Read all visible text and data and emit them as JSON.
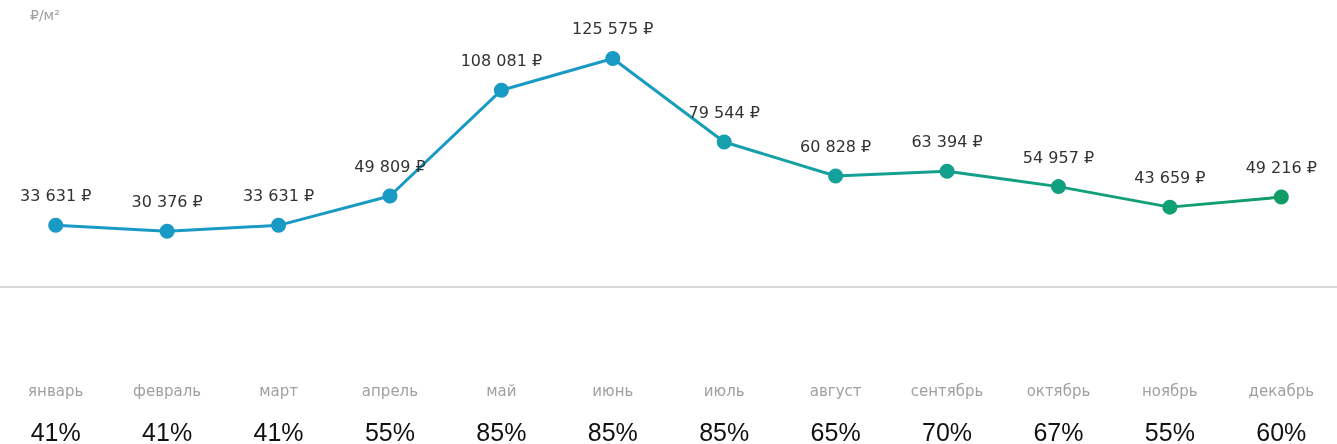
{
  "chart_data": {
    "type": "line",
    "ylabel": "₽/м²",
    "categories": [
      "январь",
      "февраль",
      "март",
      "апрель",
      "май",
      "июнь",
      "июль",
      "август",
      "сентябрь",
      "октябрь",
      "ноябрь",
      "декабрь"
    ],
    "values": [
      33631,
      30376,
      33631,
      49809,
      108081,
      125575,
      79544,
      60828,
      63394,
      54957,
      43659,
      49216
    ],
    "value_labels": [
      "33 631 ₽",
      "30 376 ₽",
      "33 631 ₽",
      "49 809 ₽",
      "108 081 ₽",
      "125 575 ₽",
      "79 544 ₽",
      "60 828 ₽",
      "63 394 ₽",
      "54 957 ₽",
      "43 659 ₽",
      "49 216 ₽"
    ],
    "colors": [
      "#199ac4",
      "#199ac4",
      "#199ac4",
      "#199ac4",
      "#199ac4",
      "#199ac4",
      "#16a0ad",
      "#14a19c",
      "#13a08c",
      "#11a07f",
      "#10a073",
      "#0f9d66"
    ],
    "marker": "circle",
    "grid": false,
    "annotations": [
      "41%",
      "41%",
      "41%",
      "55%",
      "85%",
      "85%",
      "85%",
      "65%",
      "70%",
      "67%",
      "55%",
      "60%"
    ]
  }
}
